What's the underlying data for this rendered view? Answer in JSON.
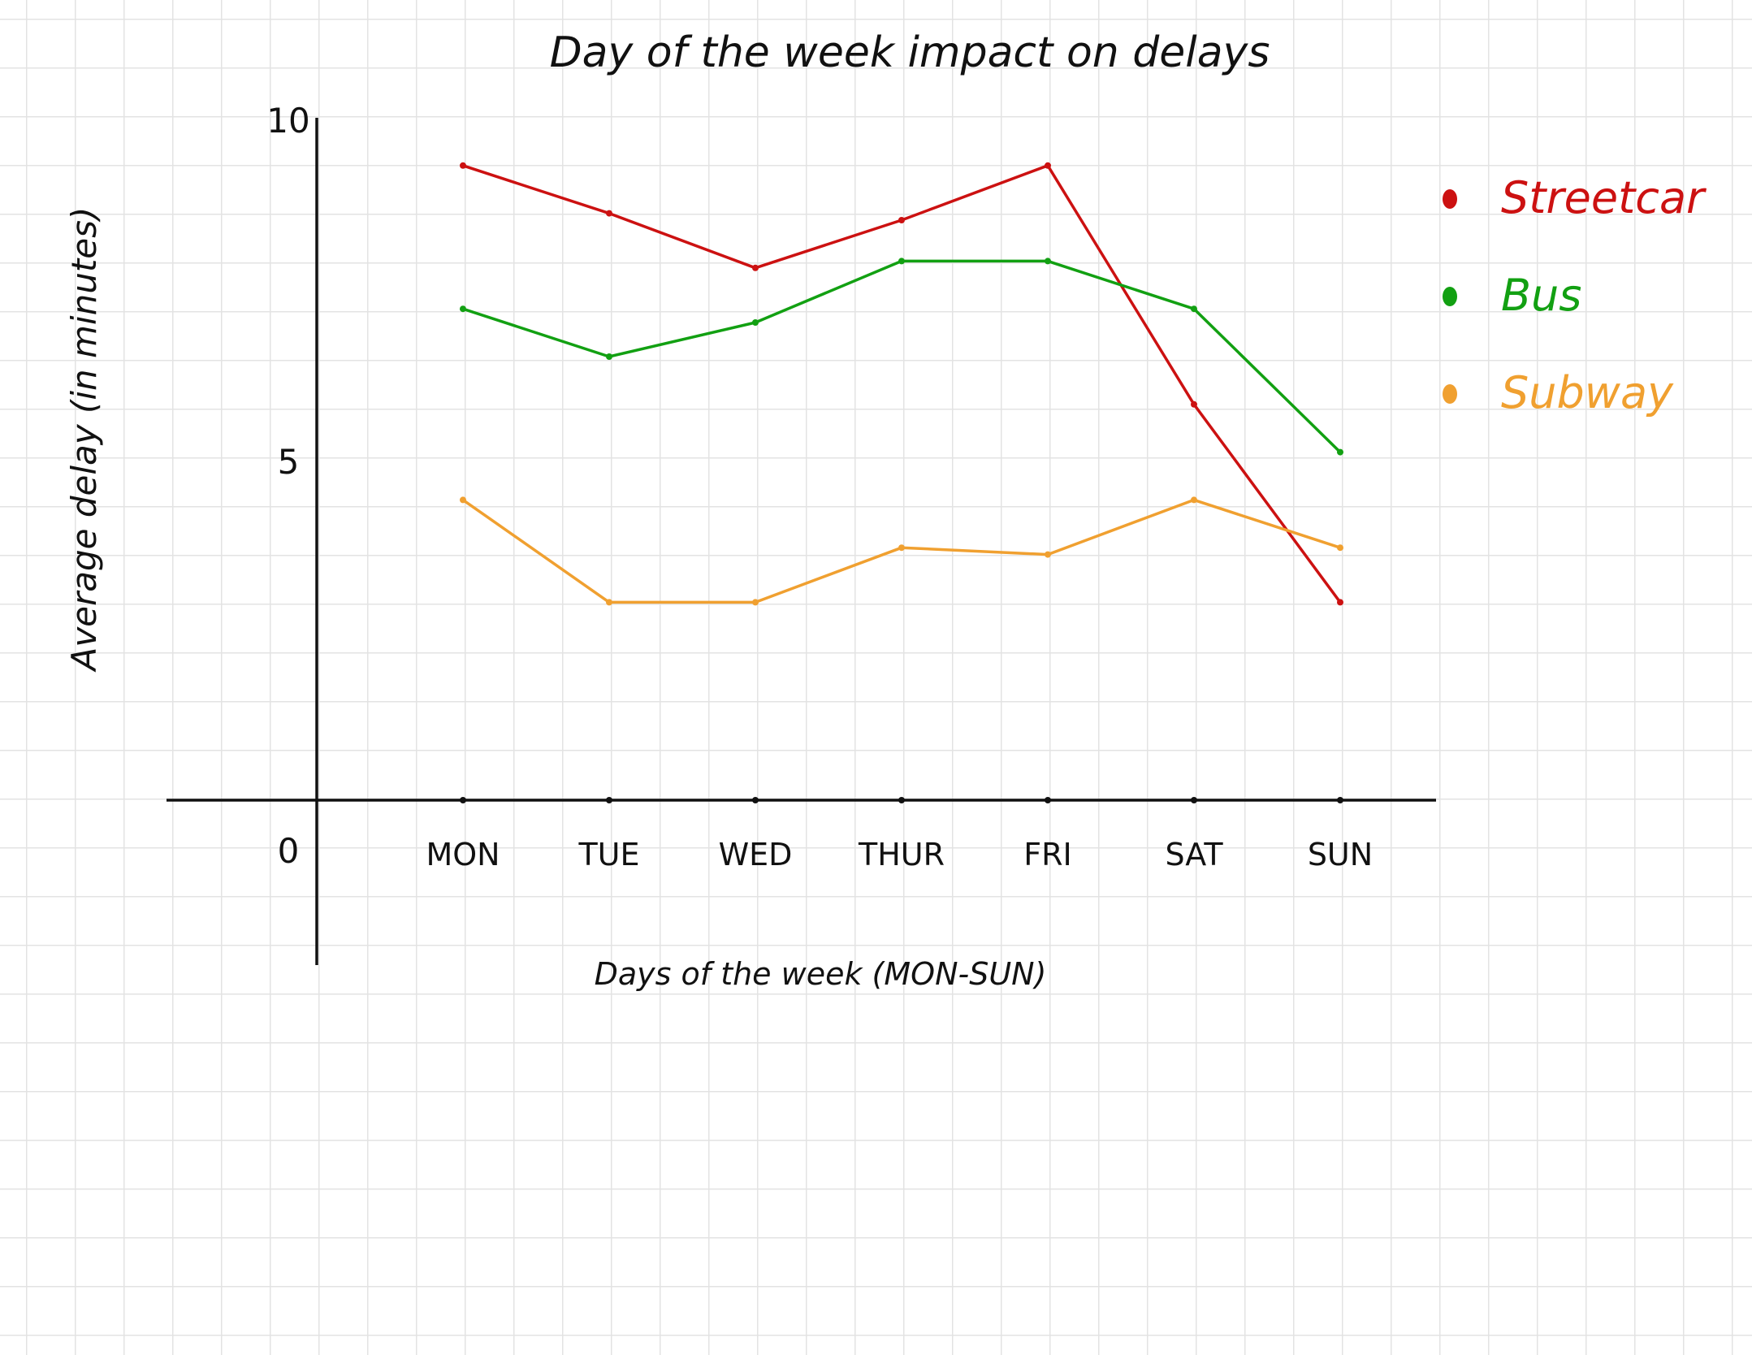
{
  "chart_data": {
    "type": "line",
    "title": "Day of the week impact on delays",
    "xlabel": "Days of the week (MON-SUN)",
    "ylabel": "Average delay (in minutes)",
    "categories": [
      "MON",
      "TUE",
      "WED",
      "THUR",
      "FRI",
      "SAT",
      "SUN"
    ],
    "ylim": [
      0,
      10
    ],
    "yticks": [
      0,
      5,
      10
    ],
    "ytick_labels": [
      "0",
      "5",
      "10"
    ],
    "grid": true,
    "legend_position": "right",
    "series": [
      {
        "name": "Streetcar",
        "color": "#cc1111",
        "values": [
          9.3,
          8.6,
          7.8,
          8.5,
          9.3,
          5.8,
          2.9
        ]
      },
      {
        "name": "Bus",
        "color": "#12a012",
        "values": [
          7.2,
          6.5,
          7.0,
          7.9,
          7.9,
          7.2,
          5.1
        ]
      },
      {
        "name": "Subway",
        "color": "#f0a030",
        "values": [
          4.4,
          2.9,
          2.9,
          3.7,
          3.6,
          4.4,
          3.7
        ]
      }
    ]
  }
}
